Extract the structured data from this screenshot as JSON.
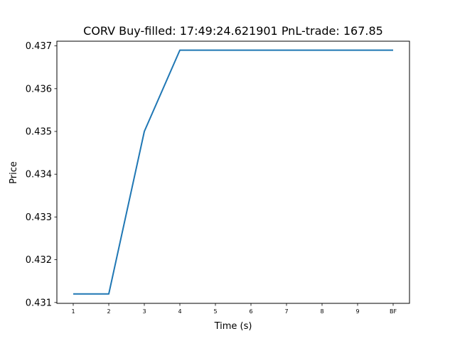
{
  "chart_data": {
    "type": "line",
    "title": "CORV  Buy-filled:  17:49:24.621901  PnL-trade:  167.85",
    "xlabel": "Time (s)",
    "ylabel": "Price",
    "categories": [
      "1",
      "2",
      "3",
      "4",
      "5",
      "6",
      "7",
      "8",
      "9",
      "BF"
    ],
    "series": [
      {
        "values": [
          0.4312,
          0.4312,
          0.435,
          0.4369,
          0.4369,
          0.4369,
          0.4369,
          0.4369,
          0.4369,
          0.4369
        ],
        "color": "#1f77b4"
      }
    ],
    "yticks": [
      "0.431",
      "0.432",
      "0.433",
      "0.434",
      "0.435",
      "0.436",
      "0.437"
    ],
    "ylim": [
      0.43098,
      0.43711
    ],
    "grid": false,
    "legend": "none"
  }
}
